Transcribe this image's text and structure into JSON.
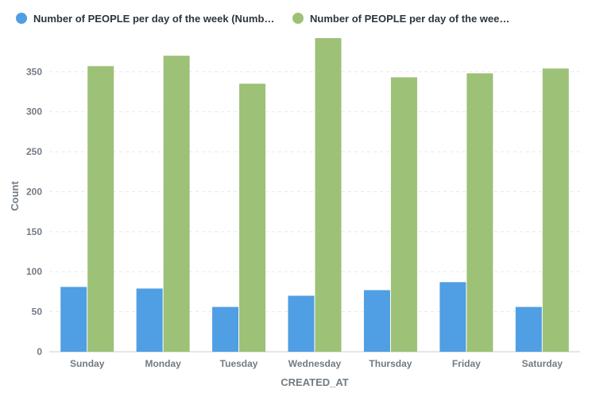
{
  "chart_data": {
    "type": "bar",
    "xlabel": "CREATED_AT",
    "ylabel": "Count",
    "ylim": [
      0,
      395
    ],
    "yticks": [
      0,
      50,
      100,
      150,
      200,
      250,
      300,
      350
    ],
    "grid": true,
    "legend_position": "top",
    "categories": [
      "Sunday",
      "Monday",
      "Tuesday",
      "Wednesday",
      "Thursday",
      "Friday",
      "Saturday"
    ],
    "series": [
      {
        "name": "Number of PEOPLE per day of the week (Number of PEOPLE wher…",
        "color": "#509ee3",
        "values": [
          81,
          79,
          56,
          70,
          77,
          87,
          56
        ]
      },
      {
        "name": "Number of PEOPLE per day of the wee…",
        "color": "#9cc177",
        "values": [
          357,
          370,
          335,
          392,
          343,
          348,
          354
        ]
      }
    ]
  }
}
